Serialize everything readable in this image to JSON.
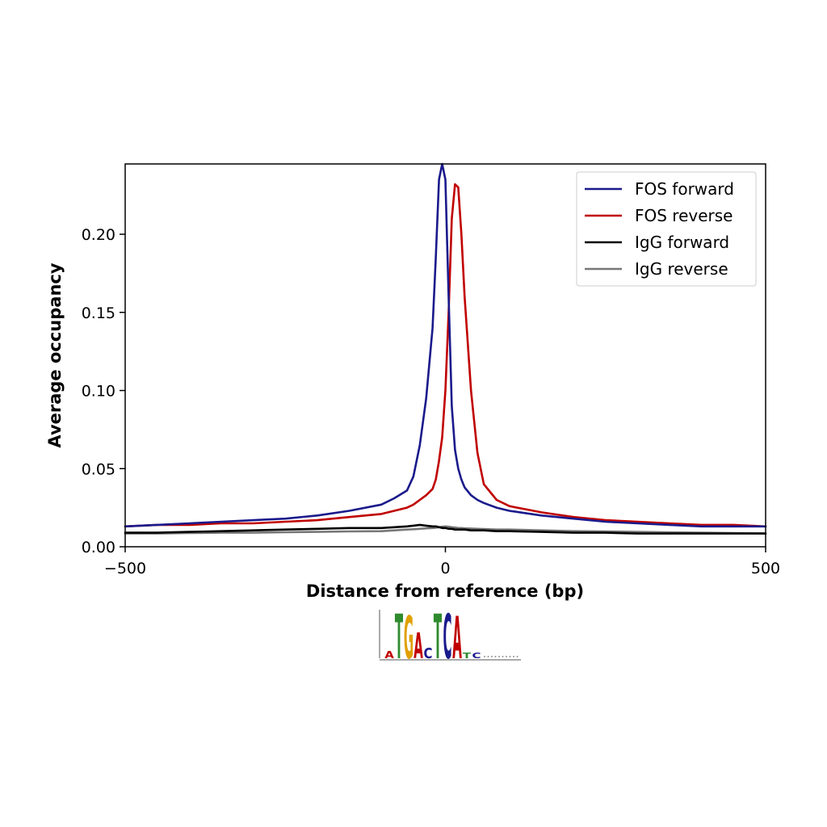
{
  "chart_data": {
    "type": "line",
    "title": "",
    "xlabel": "Distance from reference (bp)",
    "ylabel": "Average occupancy",
    "xlim": [
      -500,
      500
    ],
    "ylim": [
      0,
      0.245
    ],
    "x_ticks": [
      -500,
      0,
      500
    ],
    "x_tick_labels": [
      "−500",
      "0",
      "500"
    ],
    "y_ticks": [
      0.0,
      0.05,
      0.1,
      0.15,
      0.2
    ],
    "y_tick_labels": [
      "0.00",
      "0.05",
      "0.10",
      "0.15",
      "0.20"
    ],
    "grid": false,
    "legend_position": "top-right",
    "x": [
      -500,
      -450,
      -400,
      -350,
      -300,
      -250,
      -200,
      -150,
      -100,
      -80,
      -60,
      -50,
      -40,
      -30,
      -20,
      -15,
      -10,
      -5,
      0,
      5,
      10,
      15,
      20,
      25,
      30,
      40,
      50,
      60,
      80,
      100,
      150,
      200,
      250,
      300,
      350,
      400,
      450,
      500
    ],
    "series": [
      {
        "name": "FOS forward",
        "color": "#1a1a8c",
        "values": [
          0.013,
          0.014,
          0.015,
          0.016,
          0.017,
          0.018,
          0.02,
          0.023,
          0.027,
          0.031,
          0.036,
          0.045,
          0.065,
          0.095,
          0.14,
          0.185,
          0.235,
          0.245,
          0.235,
          0.16,
          0.09,
          0.062,
          0.05,
          0.043,
          0.038,
          0.033,
          0.03,
          0.028,
          0.025,
          0.023,
          0.02,
          0.018,
          0.016,
          0.015,
          0.014,
          0.013,
          0.013,
          0.013
        ]
      },
      {
        "name": "FOS reverse",
        "color": "#c00000",
        "values": [
          0.013,
          0.014,
          0.014,
          0.015,
          0.015,
          0.016,
          0.017,
          0.019,
          0.021,
          0.023,
          0.025,
          0.027,
          0.03,
          0.033,
          0.037,
          0.043,
          0.055,
          0.07,
          0.1,
          0.15,
          0.21,
          0.232,
          0.23,
          0.2,
          0.16,
          0.1,
          0.06,
          0.04,
          0.03,
          0.026,
          0.022,
          0.019,
          0.017,
          0.016,
          0.015,
          0.014,
          0.014,
          0.013
        ]
      },
      {
        "name": "IgG forward",
        "color": "#000000",
        "values": [
          0.009,
          0.009,
          0.0095,
          0.01,
          0.0105,
          0.011,
          0.0115,
          0.012,
          0.012,
          0.0125,
          0.013,
          0.0135,
          0.014,
          0.0135,
          0.013,
          0.013,
          0.0125,
          0.012,
          0.012,
          0.0115,
          0.0115,
          0.011,
          0.011,
          0.011,
          0.011,
          0.0105,
          0.0105,
          0.0105,
          0.01,
          0.01,
          0.0095,
          0.009,
          0.009,
          0.0085,
          0.0085,
          0.0085,
          0.0085,
          0.0085
        ]
      },
      {
        "name": "IgG reverse",
        "color": "#777777",
        "values": [
          0.0085,
          0.0085,
          0.0088,
          0.009,
          0.009,
          0.0093,
          0.0095,
          0.0098,
          0.01,
          0.0105,
          0.011,
          0.0112,
          0.0115,
          0.0118,
          0.012,
          0.0122,
          0.0125,
          0.0128,
          0.013,
          0.0128,
          0.0125,
          0.0123,
          0.012,
          0.012,
          0.0118,
          0.0117,
          0.0115,
          0.0113,
          0.011,
          0.011,
          0.0105,
          0.01,
          0.0098,
          0.0095,
          0.0092,
          0.009,
          0.0088,
          0.0085
        ]
      }
    ]
  },
  "motif_logo": {
    "letters": [
      {
        "char": "A",
        "color": "#c00000",
        "height": 0.15
      },
      {
        "char": "T",
        "color": "#2e8b2e",
        "height": 0.95
      },
      {
        "char": "G",
        "color": "#e0a000",
        "height": 0.9
      },
      {
        "char": "A",
        "color": "#c00000",
        "height": 0.55
      },
      {
        "char": "C",
        "color": "#1a1a8c",
        "height": 0.22
      },
      {
        "char": "T",
        "color": "#2e8b2e",
        "height": 0.95
      },
      {
        "char": "C",
        "color": "#1a1a8c",
        "height": 0.95
      },
      {
        "char": "A",
        "color": "#c00000",
        "height": 0.9
      },
      {
        "char": "T",
        "color": "#2e8b2e",
        "height": 0.12
      },
      {
        "char": "C",
        "color": "#1a1a8c",
        "height": 0.12
      }
    ]
  }
}
